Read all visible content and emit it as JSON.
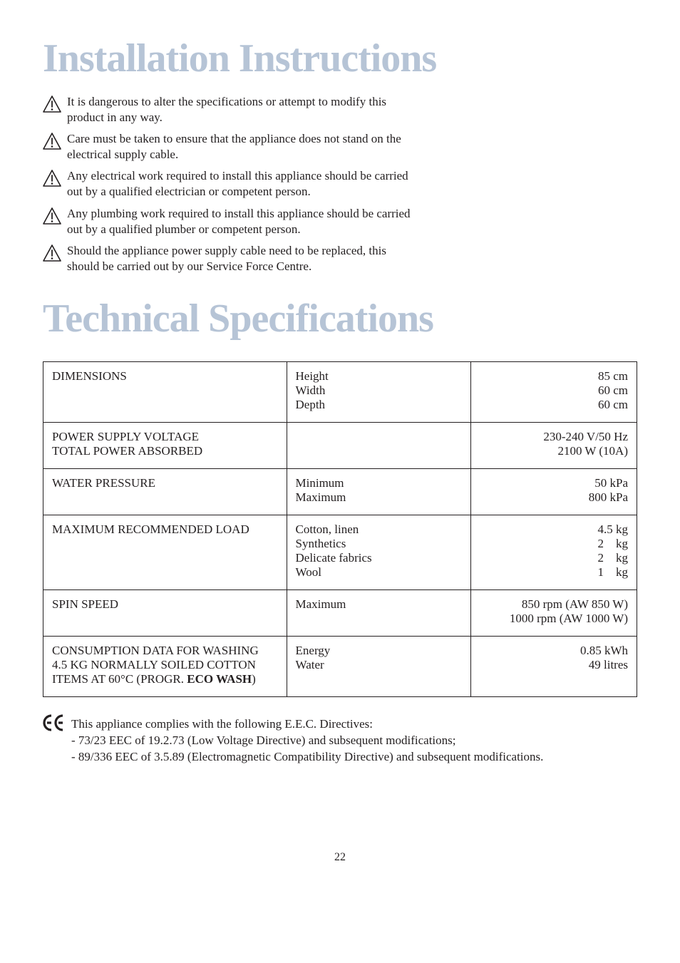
{
  "titles": {
    "installation": "Installation Instructions",
    "technical": "Technical Specifications"
  },
  "warnings": [
    "It is dangerous to alter the specifications or attempt to modify this product in any way.",
    "Care must be taken to ensure that the appliance does not stand on the electrical supply cable.",
    "Any electrical work required to install this appliance should be carried out by a qualified electrician or competent person.",
    "Any plumbing work required to install this appliance should be carried out by a qualified plumber or competent person.",
    "Should the appliance power supply cable need to be replaced, this should be carried out by our Service Force Centre."
  ],
  "spec_table": {
    "rows": [
      {
        "a": "DIMENSIONS",
        "b": "Height\nWidth\nDepth",
        "c": "85 cm\n60 cm\n60 cm"
      },
      {
        "a": "POWER SUPPLY VOLTAGE\nTOTAL POWER ABSORBED",
        "b": "",
        "c": "230-240 V/50 Hz\n2100 W (10A)"
      },
      {
        "a": "WATER PRESSURE",
        "b": "Minimum\nMaximum",
        "c": "50 kPa\n800 kPa"
      },
      {
        "a": "MAXIMUM RECOMMENDED LOAD",
        "b": "Cotton, linen\nSynthetics\nDelicate fabrics\nWool",
        "c": "4.5 kg\n2    kg\n2    kg\n1    kg"
      },
      {
        "a": "SPIN SPEED",
        "b": "Maximum",
        "c": "850 rpm (AW 850 W)\n1000 rpm (AW 1000 W)"
      },
      {
        "a": "CONSUMPTION DATA FOR WASHING\n4.5 KG NORMALLY SOILED COTTON\nITEMS AT 60°C (PROGR. <b>ECO WASH</b>)",
        "b": "Energy\nWater",
        "c": "0.85 kWh\n49 litres"
      }
    ]
  },
  "ce": {
    "mark": "CE",
    "text": "This appliance complies with the following E.E.C. Directives:\n- 73/23 EEC of 19.2.73 (Low Voltage Directive) and subsequent modifications;\n- 89/336 EEC of 3.5.89 (Electromagnetic Compatibility Directive) and subsequent modifications."
  },
  "page_number": "22",
  "colors": {
    "title_color": "#b6c4d6",
    "text_color": "#231f20",
    "border_color": "#231f20",
    "background": "#ffffff"
  },
  "icon": {
    "warning_svg_stroke": "#231f20"
  }
}
